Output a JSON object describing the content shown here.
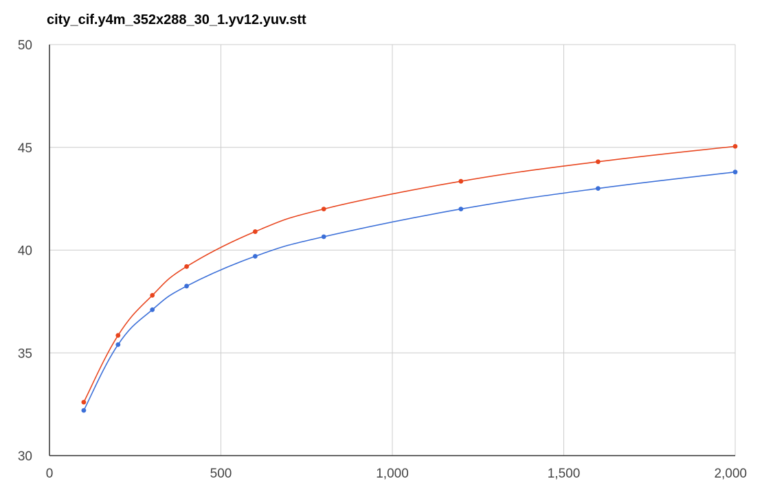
{
  "chart_data": {
    "type": "line",
    "title": "city_cif.y4m_352x288_30_1.yv12.yuv.stt",
    "xlabel": "",
    "ylabel": "",
    "xlim": [
      0,
      2000
    ],
    "ylim": [
      30,
      50
    ],
    "x_ticks": [
      0,
      500,
      1000,
      1500,
      2000
    ],
    "x_tick_labels": [
      "0",
      "500",
      "1,000",
      "1,500",
      "2,000"
    ],
    "y_ticks": [
      30,
      35,
      40,
      45,
      50
    ],
    "y_tick_labels": [
      "30",
      "35",
      "40",
      "45",
      "50"
    ],
    "grid": true,
    "legend": "none",
    "smooth": true,
    "x": [
      100,
      200,
      300,
      400,
      600,
      800,
      1200,
      1600,
      2000
    ],
    "series": [
      {
        "color": "#e8451e",
        "values": [
          32.6,
          35.85,
          37.8,
          39.2,
          40.9,
          42.0,
          43.35,
          44.3,
          45.05
        ]
      },
      {
        "color": "#3b6fd8",
        "values": [
          32.2,
          35.4,
          37.1,
          38.25,
          39.7,
          40.65,
          42.0,
          43.0,
          43.8
        ]
      }
    ]
  }
}
